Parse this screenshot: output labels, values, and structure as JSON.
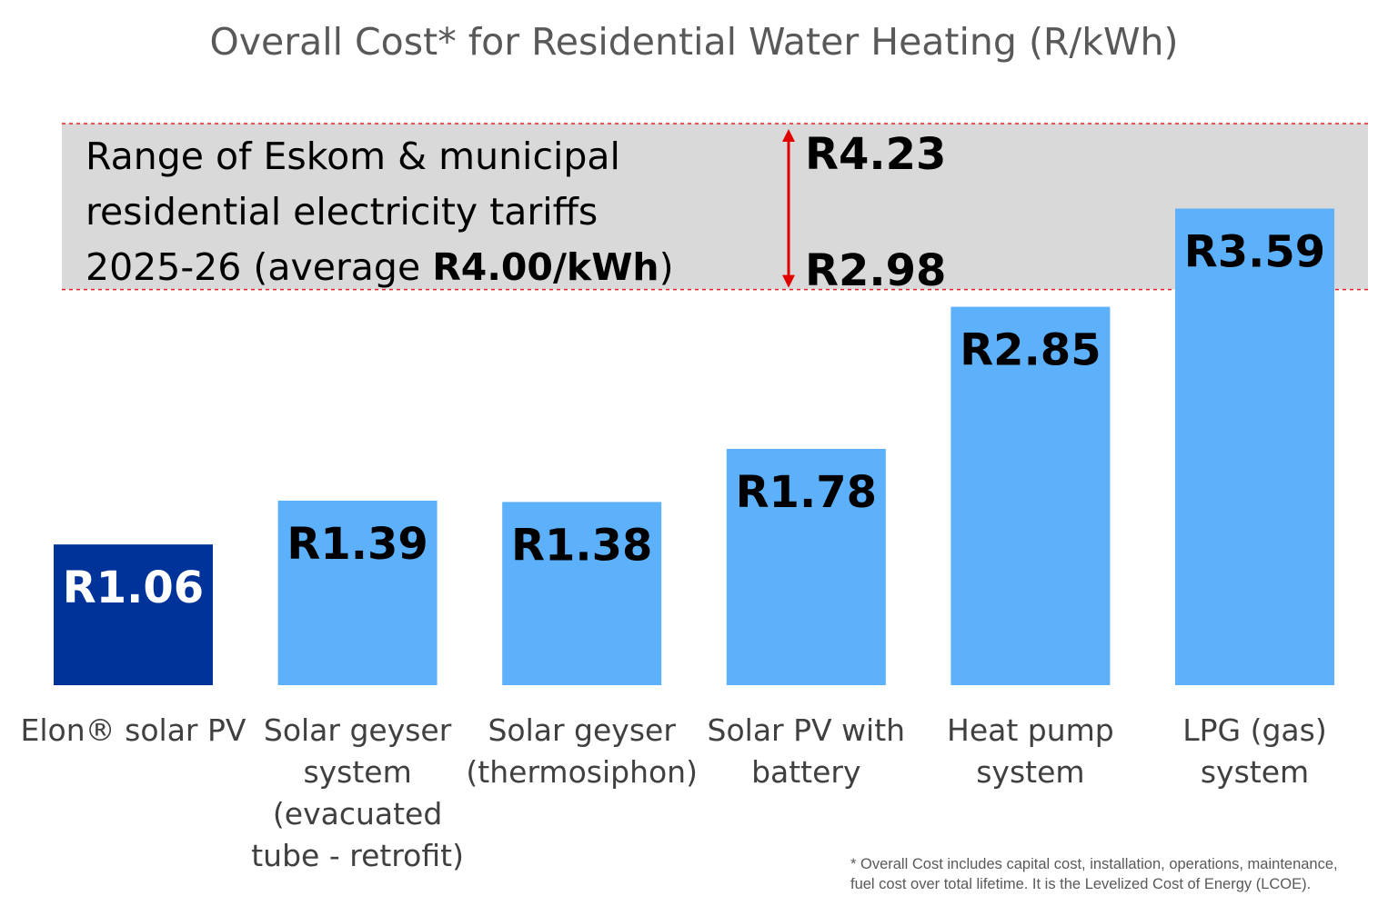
{
  "chart_data": {
    "type": "bar",
    "title": "Overall Cost* for Residential Water Heating (R/kWh)",
    "xlabel": "",
    "ylabel": "",
    "ylim": [
      0,
      4.23
    ],
    "categories": [
      "Elon® solar PV",
      "Solar geyser system (evacuated tube - retrofit)",
      "Solar geyser (thermosiphon)",
      "Solar PV with battery",
      "Heat pump system",
      "LPG (gas) system"
    ],
    "category_lines": [
      [
        "Elon® solar PV"
      ],
      [
        "Solar geyser",
        "system",
        "(evacuated",
        "tube - retrofit)"
      ],
      [
        "Solar geyser",
        "(thermosiphon)"
      ],
      [
        "Solar PV with",
        "battery"
      ],
      [
        "Heat pump",
        "system"
      ],
      [
        "LPG (gas)",
        "system"
      ]
    ],
    "values": [
      1.06,
      1.39,
      1.38,
      1.78,
      2.85,
      3.59
    ],
    "value_labels": [
      "R1.06",
      "R1.39",
      "R1.38",
      "R1.78",
      "R2.85",
      "R3.59"
    ],
    "highlight_index": 0,
    "colors": {
      "highlight": "#003399",
      "bar": "#5DB1FB",
      "band": "#D9D9D9",
      "band_border": "#E02020",
      "arrow": "#E00000",
      "title": "#595959",
      "category_text": "#404040"
    },
    "tariff_range": {
      "low": 2.98,
      "high": 4.23,
      "low_label": "R2.98",
      "high_label": "R4.23",
      "text_line1": "Range of Eskom & municipal",
      "text_line2": "residential electricity tariffs",
      "text_line3_prefix": "2025-26 (average ",
      "text_line3_bold": "R4.00/kWh",
      "text_line3_suffix": ")"
    },
    "footnote_line1": "* Overall Cost includes capital cost, installation, operations, maintenance,",
    "footnote_line2": "fuel cost over total lifetime.  It is the Levelized Cost of Energy (LCOE)."
  }
}
